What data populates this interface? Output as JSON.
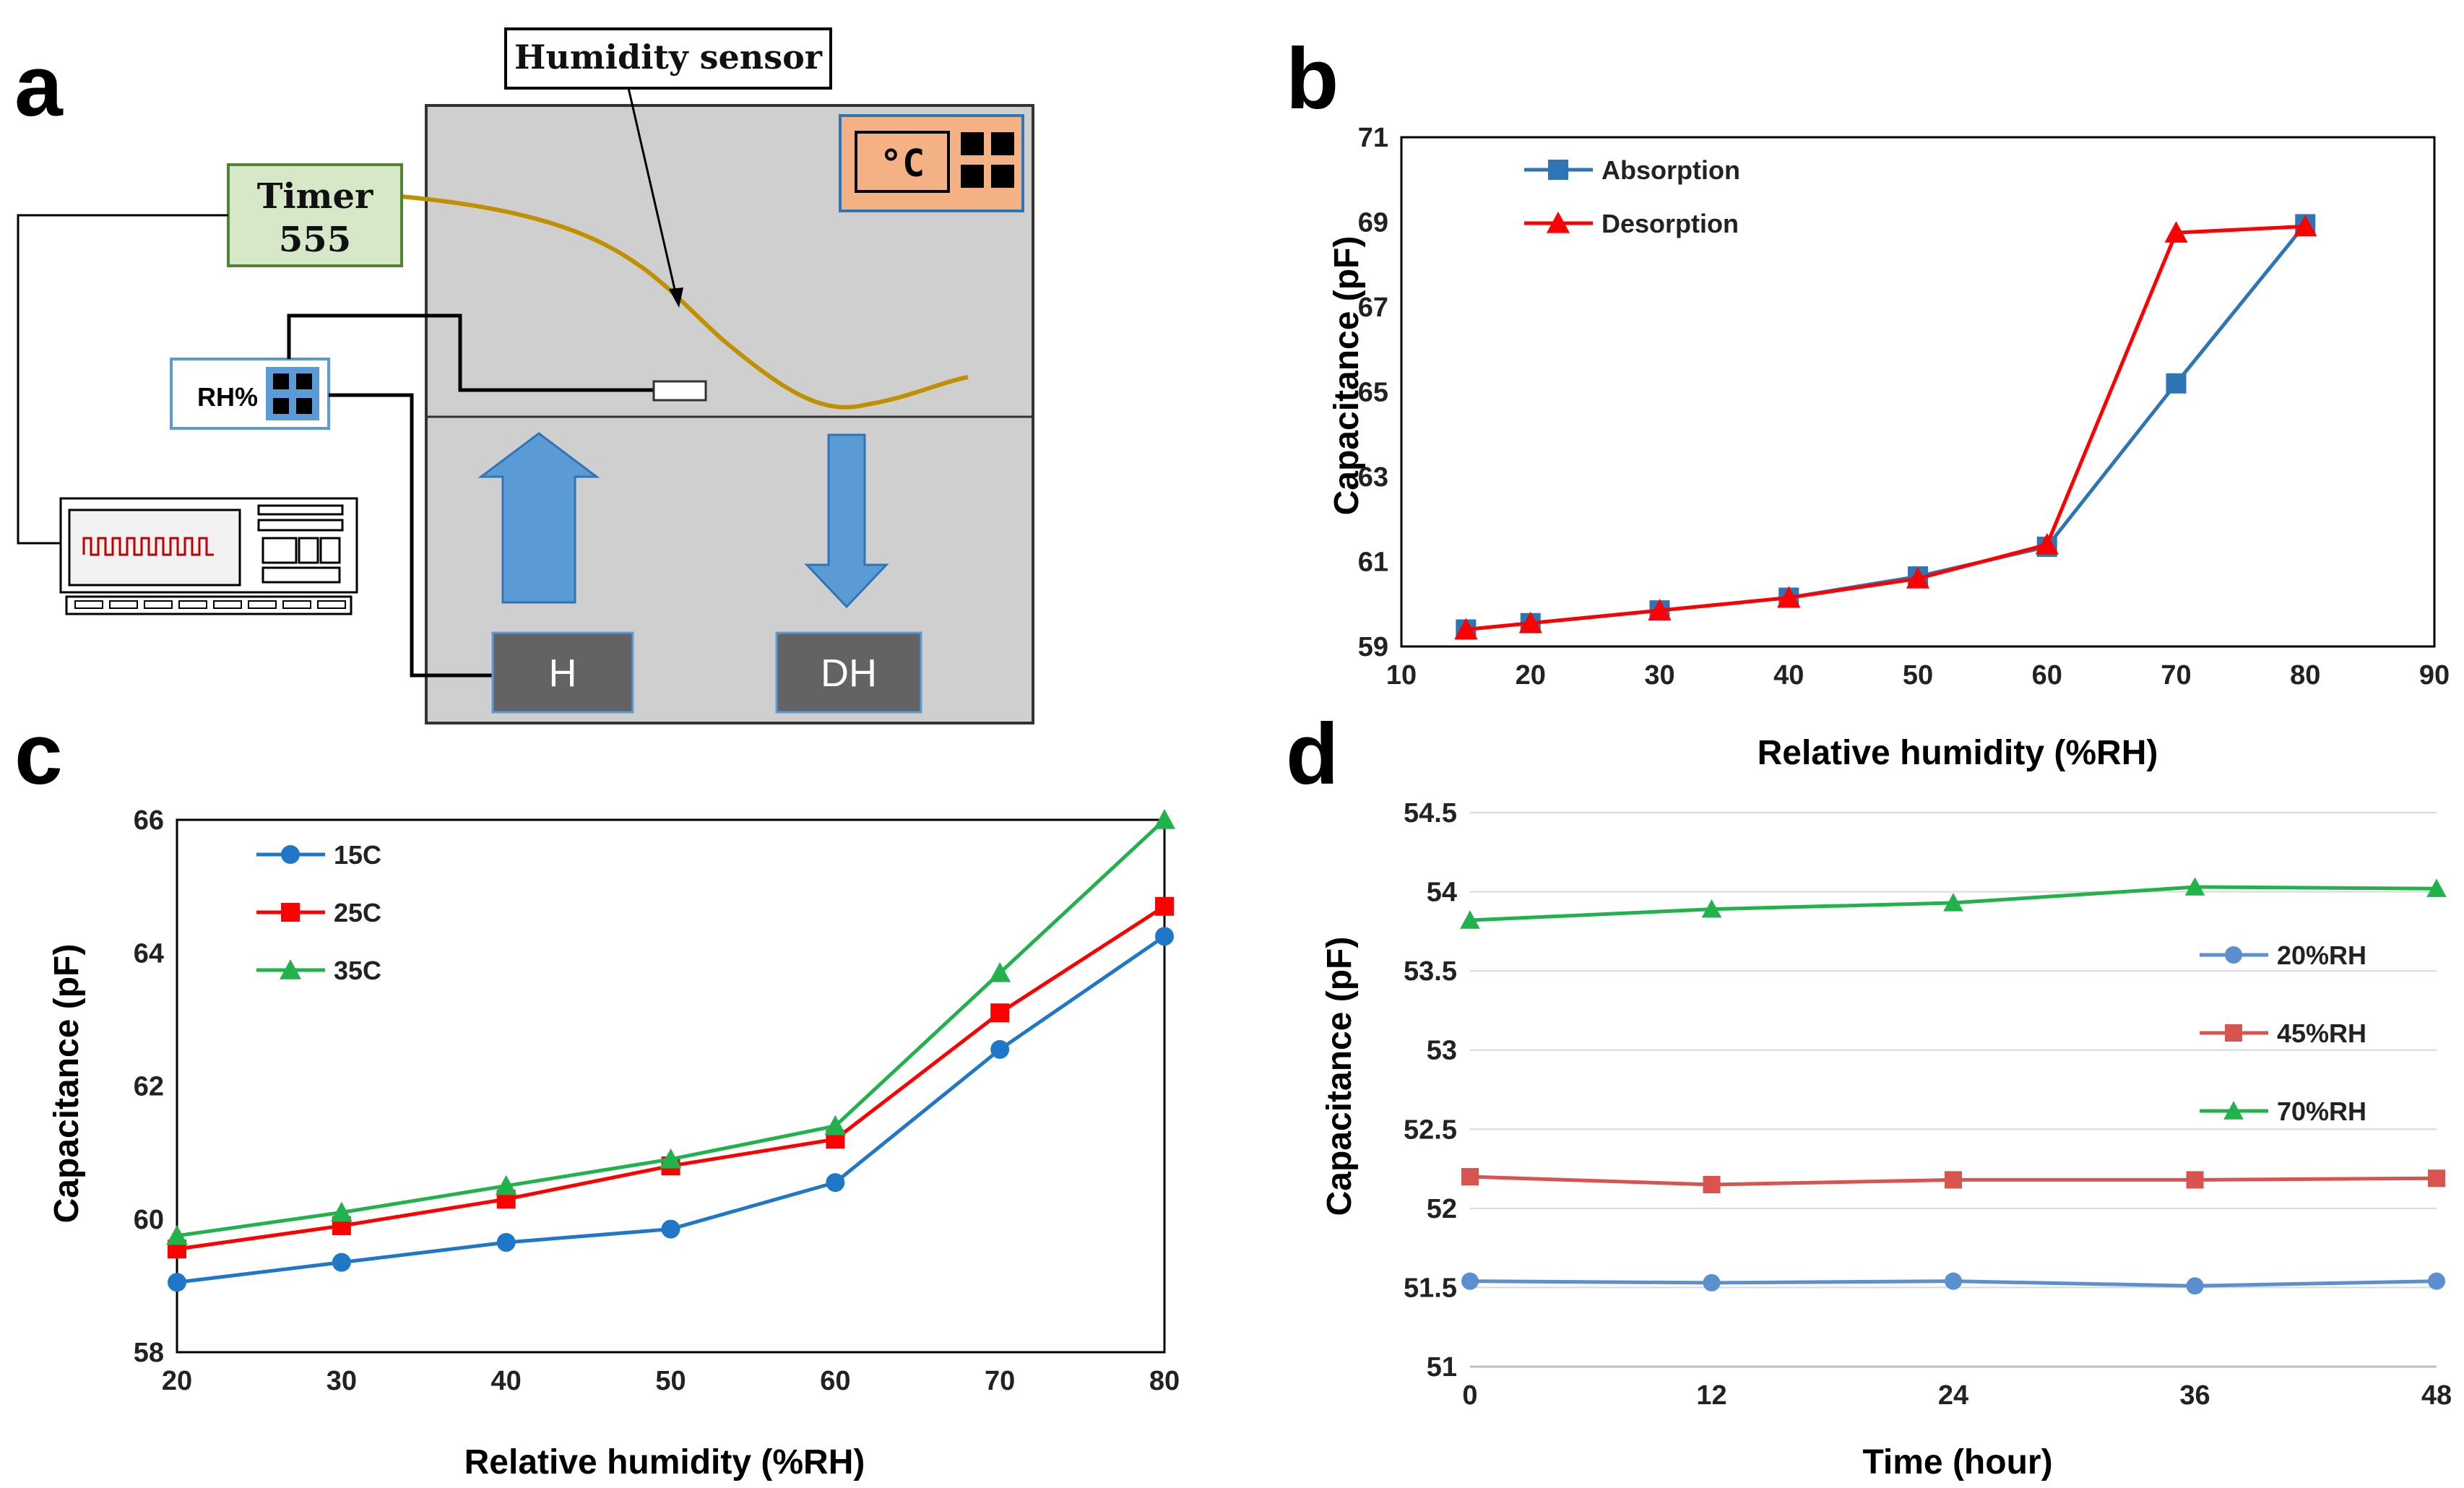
{
  "panel_labels": {
    "a": "a",
    "b": "b",
    "c": "c",
    "d": "d"
  },
  "diagram": {
    "humidity_sensor_label": "Humidity sensor",
    "timer_line1": "Timer",
    "timer_line2": "555",
    "rh_label": "RH%",
    "thermostat_label": "°C",
    "humidifier_label": "H",
    "dehumidifier_label": "DH",
    "colors": {
      "chamber": "#d0cfd0",
      "timer_box": "#d6e8c8",
      "thermostat": "#f4b183",
      "arrow": "#5b9bd5",
      "box": "#636363",
      "sensor_curve": "#bf9000"
    }
  },
  "chart_data": [
    {
      "type": "line",
      "panel": "b",
      "xlabel": "Relative humidity (%RH)",
      "ylabel": "Capacitance (pF)",
      "xlim": [
        10,
        90
      ],
      "ylim": [
        59,
        71
      ],
      "xticks": [
        10,
        20,
        30,
        40,
        50,
        60,
        70,
        80,
        90
      ],
      "yticks": [
        59,
        61,
        63,
        65,
        67,
        69,
        71
      ],
      "legend_position": "top-left",
      "series": [
        {
          "name": "Absorption",
          "color": "#2e75b6",
          "marker": "square",
          "x": [
            15,
            20,
            30,
            40,
            50,
            60,
            70,
            80
          ],
          "values": [
            59.4,
            59.55,
            59.85,
            60.15,
            60.65,
            61.35,
            65.2,
            68.95
          ]
        },
        {
          "name": "Desorption",
          "color": "#ff0000",
          "marker": "triangle",
          "x": [
            15,
            20,
            30,
            40,
            50,
            60,
            70,
            80
          ],
          "values": [
            59.4,
            59.55,
            59.85,
            60.15,
            60.6,
            61.4,
            68.75,
            68.9
          ]
        }
      ]
    },
    {
      "type": "line",
      "panel": "c",
      "xlabel": "Relative humidity (%RH)",
      "ylabel": "Capacitance (pF)",
      "xlim": [
        20,
        80
      ],
      "ylim": [
        58,
        66
      ],
      "xticks": [
        20,
        30,
        40,
        50,
        60,
        70,
        80
      ],
      "yticks": [
        58,
        60,
        62,
        64,
        66
      ],
      "legend_position": "top-left",
      "series": [
        {
          "name": "15C",
          "color": "#1f77c8",
          "marker": "circle",
          "x": [
            20,
            30,
            40,
            50,
            60,
            70,
            80
          ],
          "values": [
            59.05,
            59.35,
            59.65,
            59.85,
            60.55,
            62.55,
            64.25
          ]
        },
        {
          "name": "25C",
          "color": "#ff0000",
          "marker": "square",
          "x": [
            20,
            30,
            40,
            50,
            60,
            70,
            80
          ],
          "values": [
            59.55,
            59.9,
            60.3,
            60.8,
            61.2,
            63.1,
            64.7
          ]
        },
        {
          "name": "35C",
          "color": "#22b24c",
          "marker": "triangle",
          "x": [
            20,
            30,
            40,
            50,
            60,
            70,
            80
          ],
          "values": [
            59.75,
            60.1,
            60.5,
            60.9,
            61.4,
            63.7,
            66.0
          ]
        }
      ]
    },
    {
      "type": "line",
      "panel": "d",
      "xlabel": "Time (hour)",
      "ylabel": "Capacitance (pF)",
      "xlim": [
        0,
        48
      ],
      "ylim": [
        51,
        54.5
      ],
      "xticks": [
        0,
        12,
        24,
        36,
        48
      ],
      "yticks": [
        51,
        51.5,
        52,
        52.5,
        53,
        53.5,
        54,
        54.5
      ],
      "legend_position": "right",
      "series": [
        {
          "name": "20%RH",
          "color": "#5b8fd0",
          "marker": "circle",
          "x": [
            0,
            12,
            24,
            36,
            48
          ],
          "values": [
            51.54,
            51.53,
            51.54,
            51.51,
            51.54
          ]
        },
        {
          "name": "45%RH",
          "color": "#d9534f",
          "marker": "square",
          "x": [
            0,
            12,
            24,
            36,
            48
          ],
          "values": [
            52.2,
            52.15,
            52.18,
            52.18,
            52.19
          ]
        },
        {
          "name": "70%RH",
          "color": "#22b24c",
          "marker": "triangle",
          "x": [
            0,
            12,
            24,
            36,
            48
          ],
          "values": [
            53.82,
            53.89,
            53.93,
            54.03,
            54.02
          ]
        }
      ]
    }
  ]
}
